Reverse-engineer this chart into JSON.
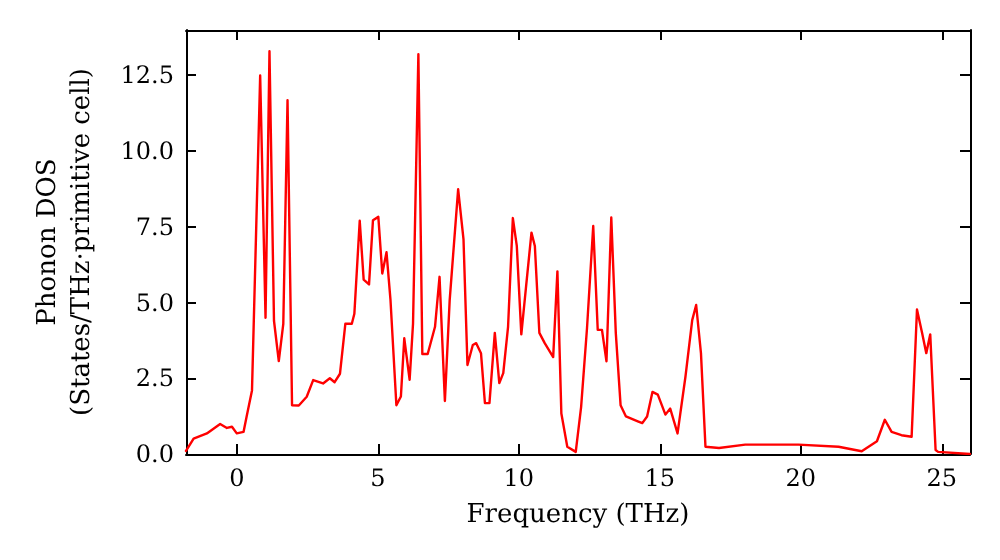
{
  "chart_data": {
    "type": "line",
    "xlabel": "Frequency (THz)",
    "ylabel": "Phonon DOS\n(States/THz·primitive cell)",
    "xlim": [
      -1.8,
      26
    ],
    "ylim": [
      0,
      14
    ],
    "xticks": [
      0,
      5,
      10,
      15,
      20,
      25
    ],
    "yticks": [
      {
        "value": 0,
        "label": "0.0"
      },
      {
        "value": 2.5,
        "label": "2.5"
      },
      {
        "value": 5,
        "label": "5.0"
      },
      {
        "value": 7.5,
        "label": "7.5"
      },
      {
        "value": 10,
        "label": "10.0"
      },
      {
        "value": 12.5,
        "label": "12.5"
      }
    ],
    "grid": false,
    "marker": "none",
    "line_style": "solid",
    "series": [
      {
        "color": "#ff0000",
        "x": [
          -1.8,
          -1.53,
          -1.06,
          -0.59,
          -0.35,
          -0.17,
          0.0,
          0.24,
          0.35,
          0.54,
          0.83,
          1.02,
          1.16,
          1.32,
          1.49,
          1.65,
          1.8,
          1.96,
          2.2,
          2.48,
          2.71,
          3.06,
          3.3,
          3.47,
          3.66,
          3.85,
          4.08,
          4.17,
          4.36,
          4.5,
          4.69,
          4.83,
          5.02,
          5.16,
          5.31,
          5.45,
          5.66,
          5.82,
          5.94,
          6.13,
          6.25,
          6.44,
          6.58,
          6.77,
          7.03,
          7.19,
          7.38,
          7.55,
          7.85,
          8.04,
          8.18,
          8.37,
          8.49,
          8.66,
          8.8,
          8.96,
          9.15,
          9.31,
          9.45,
          9.62,
          9.79,
          9.93,
          10.09,
          10.26,
          10.45,
          10.57,
          10.73,
          10.92,
          11.22,
          11.37,
          11.51,
          11.72,
          12.02,
          12.21,
          12.42,
          12.64,
          12.8,
          12.95,
          13.11,
          13.28,
          13.44,
          13.61,
          13.8,
          14.22,
          14.38,
          14.55,
          14.74,
          14.93,
          15.2,
          15.37,
          15.63,
          15.91,
          16.15,
          16.29,
          16.46,
          16.62,
          17.1,
          18.03,
          19.92,
          21.34,
          22.16,
          22.7,
          22.98,
          23.22,
          23.57,
          23.93,
          24.12,
          24.3,
          24.45,
          24.59,
          24.78,
          24.87,
          26
        ],
        "values": [
          0.1,
          0.51,
          0.68,
          0.99,
          0.86,
          0.9,
          0.68,
          0.73,
          1.24,
          2.1,
          12.5,
          4.5,
          13.3,
          4.4,
          3.07,
          4.3,
          11.68,
          1.61,
          1.6,
          1.89,
          2.44,
          2.33,
          2.5,
          2.37,
          2.65,
          4.3,
          4.3,
          4.63,
          7.7,
          5.76,
          5.6,
          7.72,
          7.83,
          5.96,
          6.66,
          5.1,
          1.61,
          1.9,
          3.82,
          2.45,
          4.3,
          13.2,
          3.3,
          3.3,
          4.2,
          5.85,
          1.75,
          5.08,
          8.74,
          7.09,
          2.94,
          3.6,
          3.66,
          3.33,
          1.68,
          1.68,
          4.0,
          2.34,
          2.67,
          4.2,
          7.79,
          6.87,
          3.95,
          5.54,
          7.31,
          6.87,
          4.0,
          3.66,
          3.2,
          6.03,
          1.34,
          0.24,
          0.07,
          1.55,
          4.16,
          7.53,
          4.1,
          4.1,
          3.06,
          7.81,
          4.0,
          1.61,
          1.24,
          1.08,
          1.02,
          1.24,
          2.05,
          1.96,
          1.3,
          1.5,
          0.68,
          2.55,
          4.42,
          4.92,
          3.33,
          0.24,
          0.2,
          0.31,
          0.31,
          0.24,
          0.09,
          0.42,
          1.13,
          0.73,
          0.62,
          0.57,
          4.77,
          4.0,
          3.33,
          3.95,
          0.13,
          0.07,
          0.0
        ]
      }
    ]
  }
}
